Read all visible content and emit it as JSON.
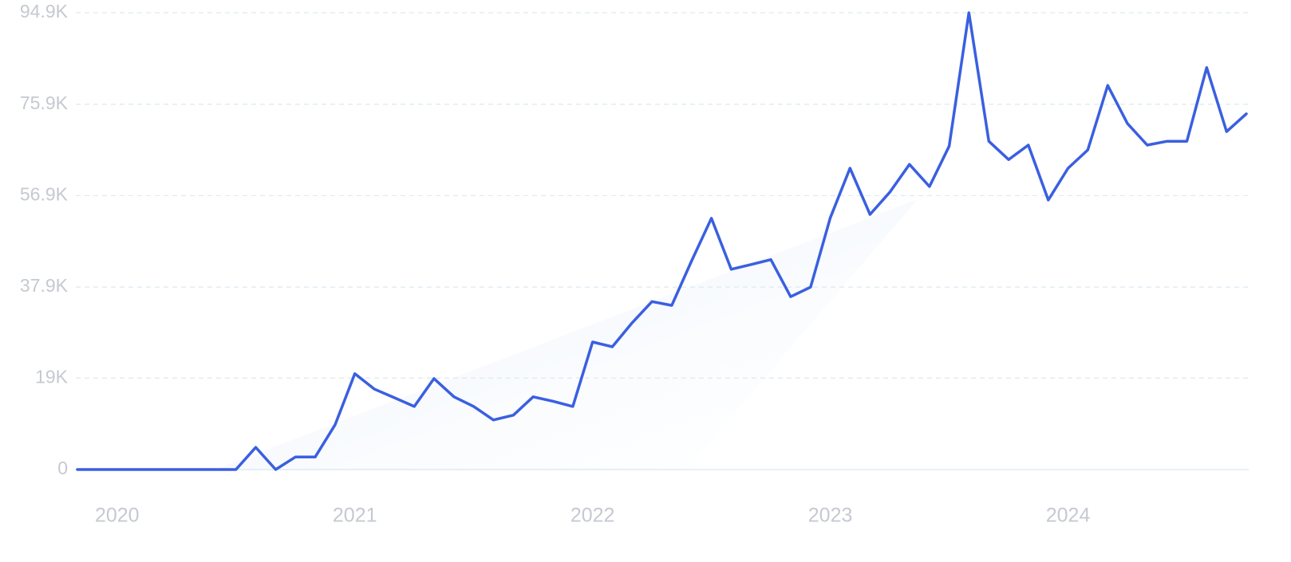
{
  "chart_data": {
    "type": "line",
    "x": [
      2019.833,
      2019.917,
      2020.0,
      2020.083,
      2020.167,
      2020.25,
      2020.333,
      2020.417,
      2020.5,
      2020.583,
      2020.667,
      2020.75,
      2020.833,
      2020.917,
      2021.0,
      2021.083,
      2021.167,
      2021.25,
      2021.333,
      2021.417,
      2021.5,
      2021.583,
      2021.667,
      2021.75,
      2021.833,
      2021.917,
      2022.0,
      2022.083,
      2022.167,
      2022.25,
      2022.333,
      2022.417,
      2022.5,
      2022.583,
      2022.667,
      2022.75,
      2022.833,
      2022.917,
      2023.0,
      2023.083,
      2023.167,
      2023.25,
      2023.333,
      2023.417,
      2023.5,
      2023.583,
      2023.667,
      2023.75,
      2023.833,
      2023.917,
      2024.0,
      2024.083,
      2024.167,
      2024.25,
      2024.333,
      2024.417,
      2024.5,
      2024.583,
      2024.667,
      2024.75
    ],
    "series": [
      {
        "color": "#3a5fe0",
        "values": [
          0,
          0,
          0,
          0,
          0,
          0,
          0,
          0,
          0,
          4.6,
          0,
          2.6,
          2.6,
          9.3,
          19.9,
          16.7,
          14.9,
          13.1,
          18.9,
          15.1,
          13.1,
          10.3,
          11.3,
          15.1,
          14.2,
          13.1,
          26.5,
          25.5,
          30.5,
          34.9,
          34.1,
          43.4,
          52.2,
          41.6,
          42.6,
          43.6,
          35.9,
          37.9,
          52.3,
          62.6,
          53.0,
          57.6,
          63.4,
          58.8,
          67.2,
          94.9,
          68.2,
          64.4,
          67.4,
          56.0,
          62.6,
          66.4,
          79.8,
          71.9,
          67.4,
          68.2,
          68.2,
          83.5,
          70.2,
          73.9
        ]
      }
    ],
    "xlim": [
      2019.833,
      2024.76
    ],
    "xticks": [
      2020,
      2021,
      2022,
      2023,
      2024
    ],
    "ylim": [
      0,
      94.9
    ],
    "yticks": [
      0,
      {
        "value": 19,
        "label": "19K"
      },
      {
        "value": 37.9,
        "label": "37.9K"
      },
      {
        "value": 56.9,
        "label": "56.9K"
      },
      {
        "value": 75.9,
        "label": "75.9K"
      },
      {
        "value": 94.9,
        "label": "94.9K"
      }
    ],
    "grid": true
  }
}
